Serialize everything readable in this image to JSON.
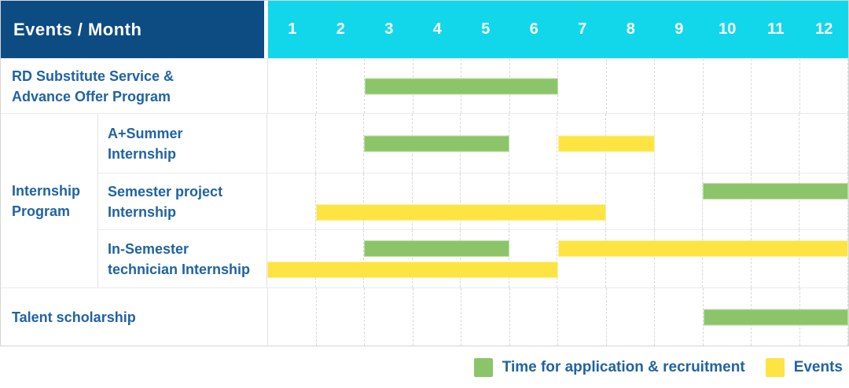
{
  "colors": {
    "header_bg": "#0d4c82",
    "months_bg": "#12d7ea",
    "label_text": "#2063a3",
    "green": "#8cc569",
    "yellow": "#fde442"
  },
  "header": {
    "title": "Events / Month"
  },
  "labels": {
    "row0": [
      "RD Substitute Service &",
      "Advance Offer Program"
    ],
    "group": [
      "Internship",
      "Program"
    ],
    "sub0": [
      "A+Summer",
      "Internship"
    ],
    "sub1": [
      "Semester project",
      "Internship"
    ],
    "sub2": [
      "In-Semester",
      "technician Internship"
    ],
    "row4": [
      "Talent scholarship"
    ]
  },
  "legend": {
    "application": "Time for application & recruitment",
    "events": "Events"
  },
  "chart_data": {
    "type": "table",
    "title": "Events / Month",
    "categories": [
      "1",
      "2",
      "3",
      "4",
      "5",
      "6",
      "7",
      "8",
      "9",
      "10",
      "11",
      "12"
    ],
    "legend": [
      "Time for application & recruitment",
      "Events"
    ],
    "legend_position": "bottom-right",
    "grid": true,
    "rows": [
      {
        "group": null,
        "label": "RD Substitute Service & Advance Offer Program",
        "bars": [
          {
            "series": "Time for application & recruitment",
            "start_month": 3,
            "end_month": 6,
            "lane": "center"
          }
        ]
      },
      {
        "group": "Internship Program",
        "label": "A+Summer Internship",
        "bars": [
          {
            "series": "Time for application & recruitment",
            "start_month": 3,
            "end_month": 5,
            "lane": "center"
          },
          {
            "series": "Events",
            "start_month": 7,
            "end_month": 8,
            "lane": "center"
          }
        ]
      },
      {
        "group": "Internship Program",
        "label": "Semester project Internship",
        "bars": [
          {
            "series": "Time for application & recruitment",
            "start_month": 10,
            "end_month": 12,
            "lane": "top"
          },
          {
            "series": "Events",
            "start_month": 2,
            "end_month": 7,
            "lane": "bottom"
          }
        ]
      },
      {
        "group": "Internship Program",
        "label": "In-Semester technician Internship",
        "bars": [
          {
            "series": "Time for application & recruitment",
            "start_month": 3,
            "end_month": 5,
            "lane": "top"
          },
          {
            "series": "Events",
            "start_month": 7,
            "end_month": 12,
            "lane": "top"
          },
          {
            "series": "Events",
            "start_month": 1,
            "end_month": 6,
            "lane": "bottom"
          }
        ]
      },
      {
        "group": null,
        "label": "Talent scholarship",
        "bars": [
          {
            "series": "Time for application & recruitment",
            "start_month": 10,
            "end_month": 12,
            "lane": "center"
          }
        ]
      }
    ]
  }
}
